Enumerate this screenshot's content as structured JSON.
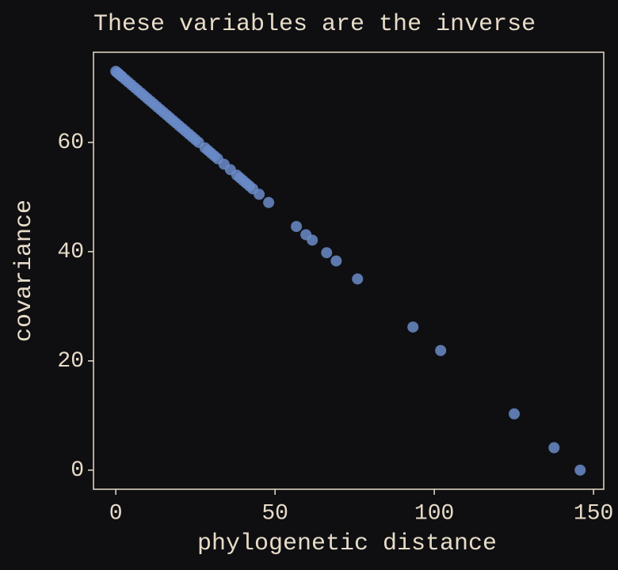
{
  "chart_data": {
    "type": "scatter",
    "title": "These variables are the inverse",
    "xlabel": "phylogenetic distance",
    "ylabel": "covariance",
    "x": [
      0,
      0.5,
      1,
      1.5,
      2,
      3,
      4,
      5,
      6,
      7,
      8,
      9,
      10,
      11,
      12,
      13,
      14,
      15,
      16,
      17,
      18,
      19,
      20,
      21,
      22,
      23,
      24,
      25,
      26,
      28,
      29,
      30,
      31,
      32,
      34,
      36,
      38,
      39,
      40,
      41,
      42,
      43,
      45,
      48,
      56.7,
      59.7,
      61.7,
      66.2,
      69.2,
      75.9,
      93.3,
      102,
      125.1,
      137.6,
      145.8
    ],
    "values": [
      73,
      72.75,
      72.5,
      72.25,
      72,
      71.5,
      71,
      70.5,
      70,
      69.5,
      69,
      68.5,
      68,
      67.5,
      67,
      66.5,
      66,
      65.5,
      65,
      64.5,
      64,
      63.5,
      63,
      62.5,
      62,
      61.5,
      61,
      60.5,
      60,
      59,
      58.5,
      58,
      57.5,
      57,
      56,
      55,
      54,
      53.5,
      53,
      52.5,
      52,
      51.5,
      50.5,
      49,
      44.6,
      43.1,
      42.1,
      39.8,
      38.3,
      35,
      26.2,
      21.9,
      10.3,
      4.1,
      0
    ],
    "color": "#6a8bc8",
    "xlim": [
      -7,
      153.2
    ],
    "ylim": [
      -3.5,
      76.5
    ],
    "xticks": [
      0,
      50,
      100,
      150
    ],
    "yticks": [
      0,
      20,
      40,
      60
    ]
  }
}
